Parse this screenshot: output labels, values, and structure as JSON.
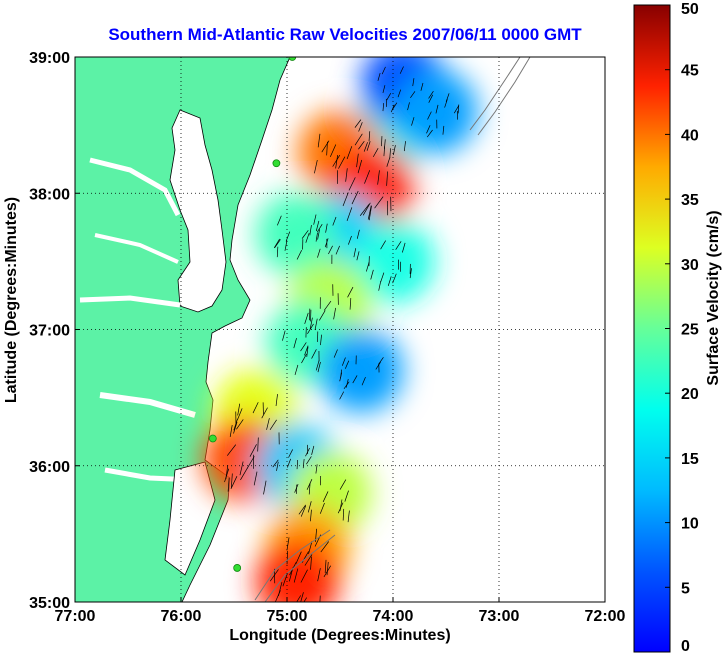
{
  "chart_data": {
    "type": "heatmap",
    "title": "Southern Mid-Atlantic Raw Velocities 2007/06/11 0000 GMT",
    "xlabel": "Longitude (Degrees:Minutes)",
    "ylabel": "Latitude (Degrees:Minutes)",
    "colorbar_label": "Surface Velocity (cm/s)",
    "xlim": [
      -77,
      -72
    ],
    "ylim": [
      35,
      39
    ],
    "x_ticks": [
      {
        "value": -77,
        "label": "77:00"
      },
      {
        "value": -76,
        "label": "76:00"
      },
      {
        "value": -75,
        "label": "75:00"
      },
      {
        "value": -74,
        "label": "74:00"
      },
      {
        "value": -73,
        "label": "73:00"
      },
      {
        "value": -72,
        "label": "72:00"
      }
    ],
    "y_ticks": [
      {
        "value": 35,
        "label": "35:00"
      },
      {
        "value": 36,
        "label": "36:00"
      },
      {
        "value": 37,
        "label": "37:00"
      },
      {
        "value": 38,
        "label": "38:00"
      },
      {
        "value": 39,
        "label": "39:00"
      }
    ],
    "colorbar_range": [
      0,
      50
    ],
    "colorbar_ticks": [
      {
        "value": 0,
        "label": "0"
      },
      {
        "value": 5,
        "label": "5"
      },
      {
        "value": 10,
        "label": "10"
      },
      {
        "value": 15,
        "label": "15"
      },
      {
        "value": 20,
        "label": "20"
      },
      {
        "value": 25,
        "label": "25"
      },
      {
        "value": 30,
        "label": "30"
      },
      {
        "value": 35,
        "label": "35"
      },
      {
        "value": 40,
        "label": "40"
      },
      {
        "value": 45,
        "label": "45"
      },
      {
        "value": 50,
        "label": "50"
      }
    ],
    "grid": true,
    "colormap": "jet",
    "land_color": "#5cf2a6",
    "ocean_color": "#ffffff",
    "station_color": "#33dd33",
    "stations": [
      {
        "lon": -74.95,
        "lat": 39.0
      },
      {
        "lon": -75.1,
        "lat": 38.22
      },
      {
        "lon": -75.7,
        "lat": 36.2
      },
      {
        "lon": -75.47,
        "lat": 35.25
      }
    ],
    "velocity_fields": [
      {
        "lon": -74.1,
        "lat": 38.4,
        "speed": 20
      },
      {
        "lon": -74.5,
        "lat": 38.3,
        "speed": 38
      },
      {
        "lon": -74.2,
        "lat": 38.05,
        "speed": 42
      },
      {
        "lon": -73.9,
        "lat": 38.8,
        "speed": 10
      },
      {
        "lon": -73.6,
        "lat": 38.6,
        "speed": 14
      },
      {
        "lon": -74.5,
        "lat": 37.7,
        "speed": 16
      },
      {
        "lon": -74.9,
        "lat": 37.7,
        "speed": 22
      },
      {
        "lon": -74.0,
        "lat": 37.5,
        "speed": 20
      },
      {
        "lon": -74.6,
        "lat": 37.2,
        "speed": 28
      },
      {
        "lon": -74.8,
        "lat": 36.9,
        "speed": 22
      },
      {
        "lon": -74.3,
        "lat": 36.7,
        "speed": 14
      },
      {
        "lon": -75.3,
        "lat": 36.4,
        "speed": 30
      },
      {
        "lon": -75.4,
        "lat": 36.05,
        "speed": 40
      },
      {
        "lon": -74.9,
        "lat": 36.0,
        "speed": 16
      },
      {
        "lon": -74.6,
        "lat": 35.8,
        "speed": 28
      },
      {
        "lon": -74.8,
        "lat": 35.4,
        "speed": 36
      },
      {
        "lon": -74.9,
        "lat": 35.15,
        "speed": 42
      }
    ]
  }
}
